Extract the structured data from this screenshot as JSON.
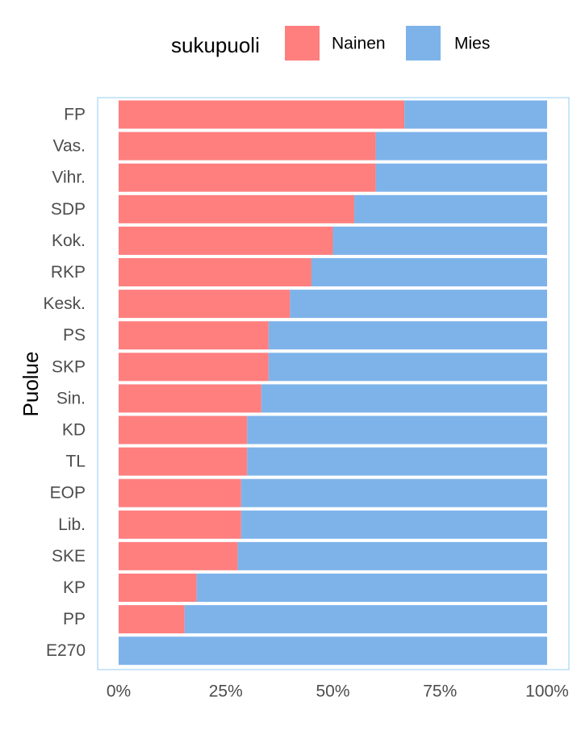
{
  "chart_data": {
    "type": "bar",
    "orientation": "horizontal",
    "stacked": "percent",
    "categories": [
      "FP",
      "Vas.",
      "Vihr.",
      "SDP",
      "Kok.",
      "RKP",
      "Kesk.",
      "PS",
      "SKP",
      "Sin.",
      "KD",
      "TL",
      "EOP",
      "Lib.",
      "SKE",
      "KP",
      "PP",
      "E270"
    ],
    "series": [
      {
        "name": "Nainen",
        "color": "#F8766D",
        "values": [
          0.667,
          0.6,
          0.6,
          0.55,
          0.5,
          0.45,
          0.4,
          0.35,
          0.35,
          0.333,
          0.3,
          0.3,
          0.286,
          0.286,
          0.278,
          0.182,
          0.154,
          0.0
        ]
      },
      {
        "name": "Mies",
        "color": "#619CFF",
        "values": [
          0.333,
          0.4,
          0.4,
          0.45,
          0.5,
          0.55,
          0.6,
          0.65,
          0.65,
          0.667,
          0.7,
          0.7,
          0.714,
          0.714,
          0.722,
          0.818,
          0.846,
          1.0
        ]
      }
    ],
    "xlim": [
      0,
      1
    ],
    "xticks": [
      0,
      0.25,
      0.5,
      0.75,
      1.0
    ],
    "xtick_labels": [
      "0%",
      "25%",
      "50%",
      "75%",
      "100%"
    ],
    "xlabel": "",
    "ylabel": "Puolue",
    "legend": {
      "title": "sukupuoli",
      "placement": "top"
    },
    "grid": false,
    "panel_border_color": "#A6D5F7"
  }
}
